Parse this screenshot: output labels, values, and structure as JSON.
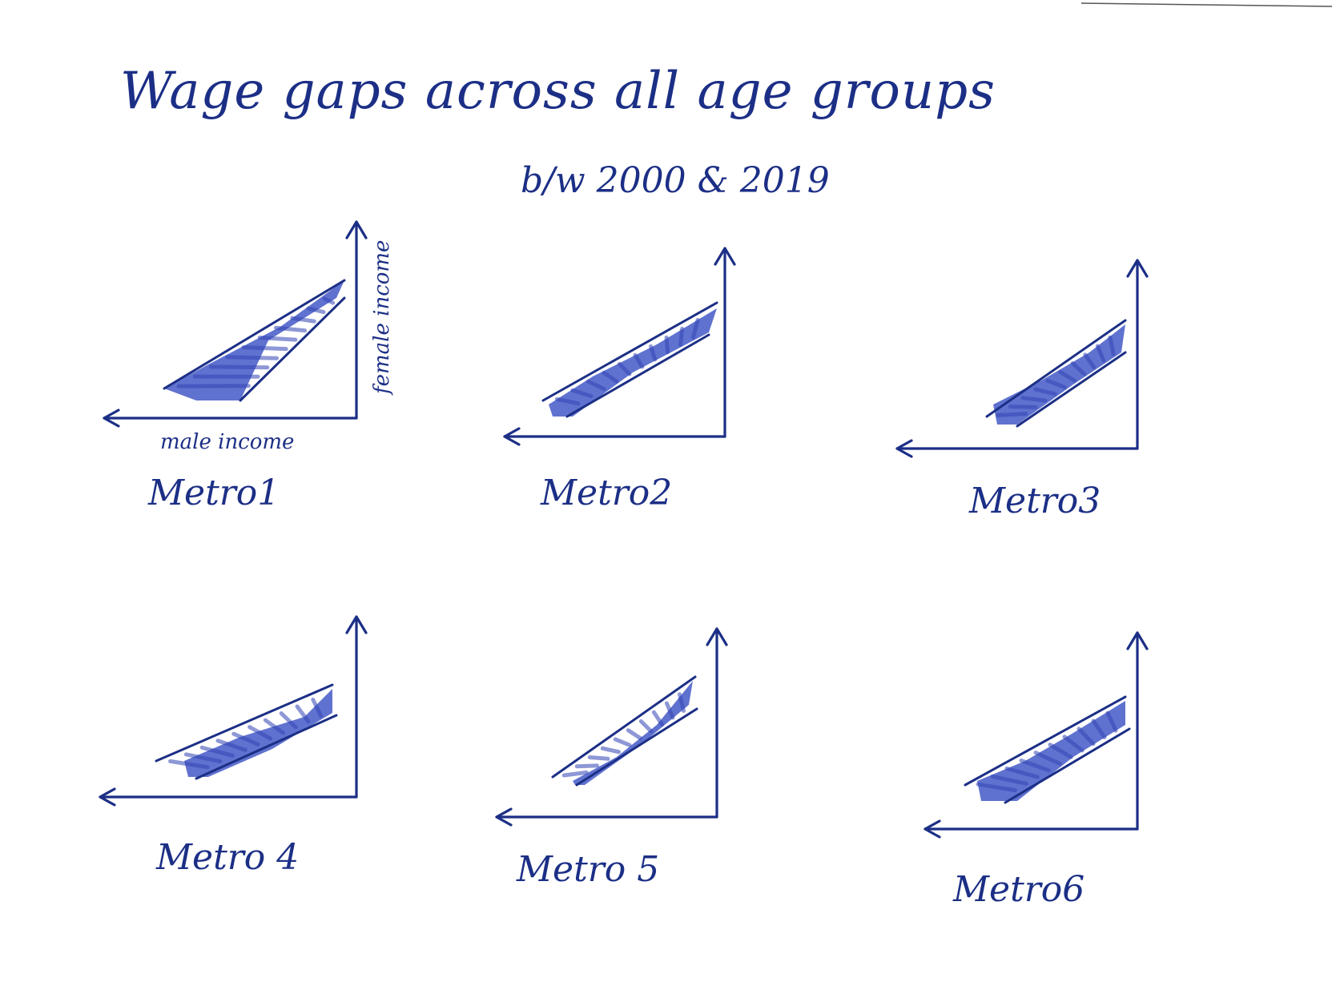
{
  "title": "Wage gaps across all age groups",
  "subtitle": "b/w 2000 & 2019",
  "colors": {
    "ink": "#1c2f86",
    "band": "#4a5ec8",
    "paper": "#ffffff"
  },
  "chart_data": [
    {
      "type": "area",
      "title": "Metro1",
      "xlabel": "male income",
      "ylabel": "female income",
      "x_direction": "right-to-left",
      "grid": false
    },
    {
      "type": "area",
      "title": "Metro2",
      "xlabel": "",
      "ylabel": "",
      "x_direction": "right-to-left",
      "grid": false
    },
    {
      "type": "area",
      "title": "Metro3",
      "xlabel": "",
      "ylabel": "",
      "x_direction": "right-to-left",
      "grid": false
    },
    {
      "type": "area",
      "title": "Metro 4",
      "xlabel": "",
      "ylabel": "",
      "x_direction": "right-to-left",
      "grid": false
    },
    {
      "type": "area",
      "title": "Metro 5",
      "xlabel": "",
      "ylabel": "",
      "x_direction": "right-to-left",
      "grid": false
    },
    {
      "type": "area",
      "title": "Metro6",
      "xlabel": "",
      "ylabel": "",
      "x_direction": "right-to-left",
      "grid": false
    }
  ]
}
